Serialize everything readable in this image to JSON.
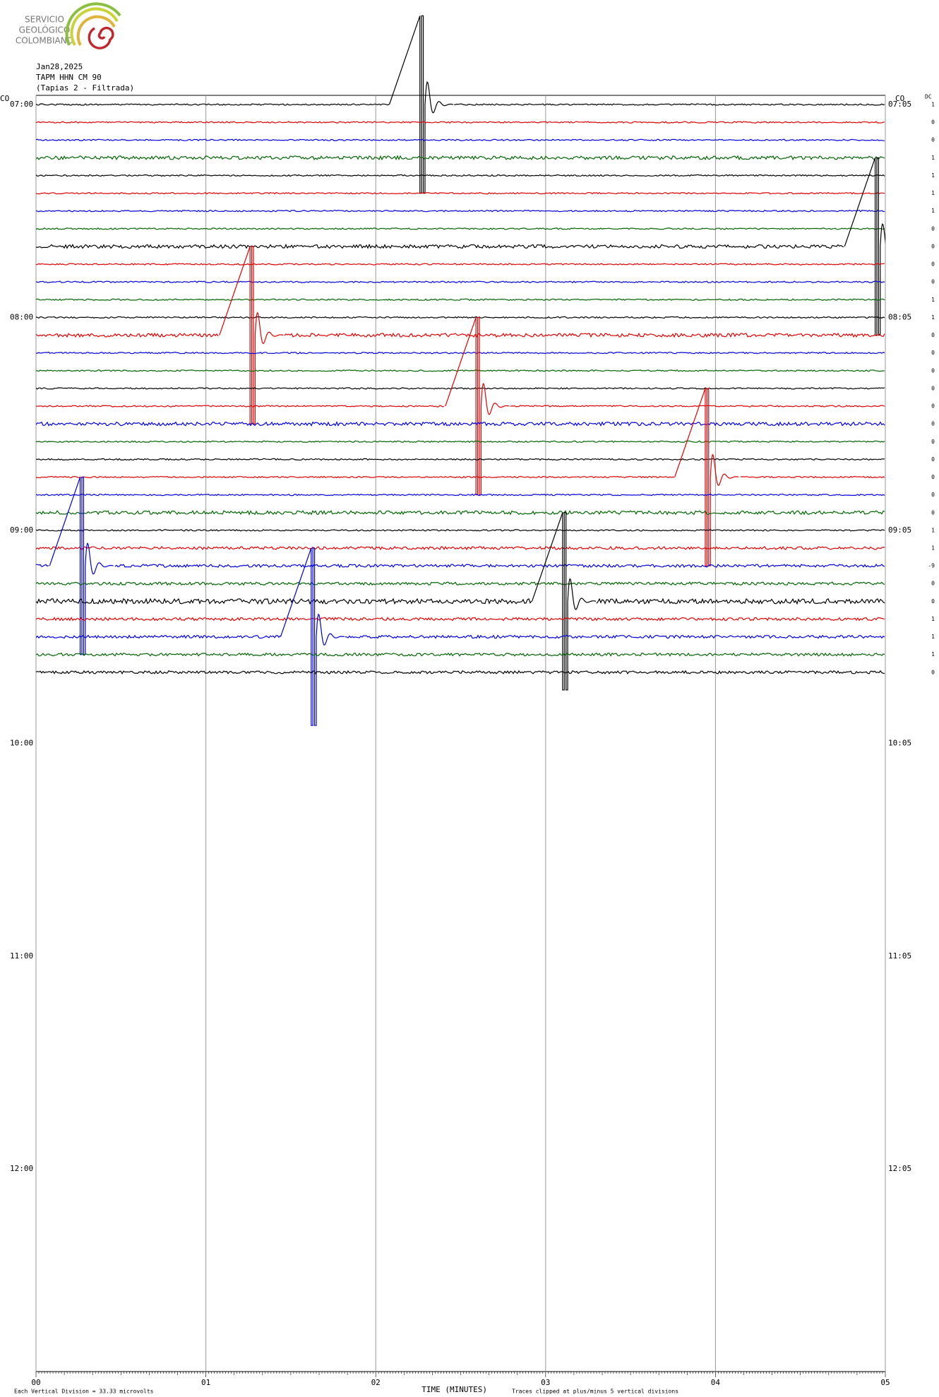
{
  "logo": {
    "lines": [
      "SERVICIO",
      "GEOLÓGICO",
      "COLOMBIANO"
    ]
  },
  "chart_data": {
    "type": "helicorder",
    "date": "Jan28,2025",
    "station": "TAPM HHN CM 90",
    "subtitle": "(Tapias 2 - Filtrada)",
    "network_left": "CO",
    "network_right": "CO",
    "dc_header": "DC",
    "xlabel": "TIME (MINUTES)",
    "xlim": [
      0,
      5
    ],
    "xticks": [
      {
        "value": 0,
        "label": "00"
      },
      {
        "value": 1,
        "label": "01"
      },
      {
        "value": 2,
        "label": "02"
      },
      {
        "value": 3,
        "label": "03"
      },
      {
        "value": 4,
        "label": "04"
      },
      {
        "value": 5,
        "label": "05"
      }
    ],
    "hours": [
      {
        "left": "07:00",
        "right": "07:05"
      },
      {
        "left": "08:00",
        "right": "08:05"
      },
      {
        "left": "09:00",
        "right": "09:05"
      },
      {
        "left": "10:00",
        "right": "10:05"
      },
      {
        "left": "11:00",
        "right": "11:05"
      },
      {
        "left": "12:00",
        "right": "12:05"
      }
    ],
    "colors": [
      "#000000",
      "#e00000",
      "#0000dd",
      "#006600"
    ],
    "dc": [
      1,
      0,
      0,
      1,
      1,
      1,
      1,
      0,
      0,
      0,
      0,
      1,
      1,
      0,
      0,
      0,
      0,
      0,
      0,
      0,
      0,
      0,
      0,
      0,
      1,
      1,
      -9,
      0,
      0,
      1,
      1,
      1,
      0
    ],
    "events": [
      {
        "row": 0,
        "minute": 2.26
      },
      {
        "row": 8,
        "minute": 4.94
      },
      {
        "row": 13,
        "minute": 1.26
      },
      {
        "row": 17,
        "minute": 2.59
      },
      {
        "row": 21,
        "minute": 3.94
      },
      {
        "row": 26,
        "minute": 0.26
      },
      {
        "row": 28,
        "minute": 3.1
      },
      {
        "row": 30,
        "minute": 1.62
      }
    ],
    "footer_left": "Each Vertical Division =   33.33 microvolts",
    "footer_right": "Traces clipped at plus/minus 5 vertical divisions"
  }
}
